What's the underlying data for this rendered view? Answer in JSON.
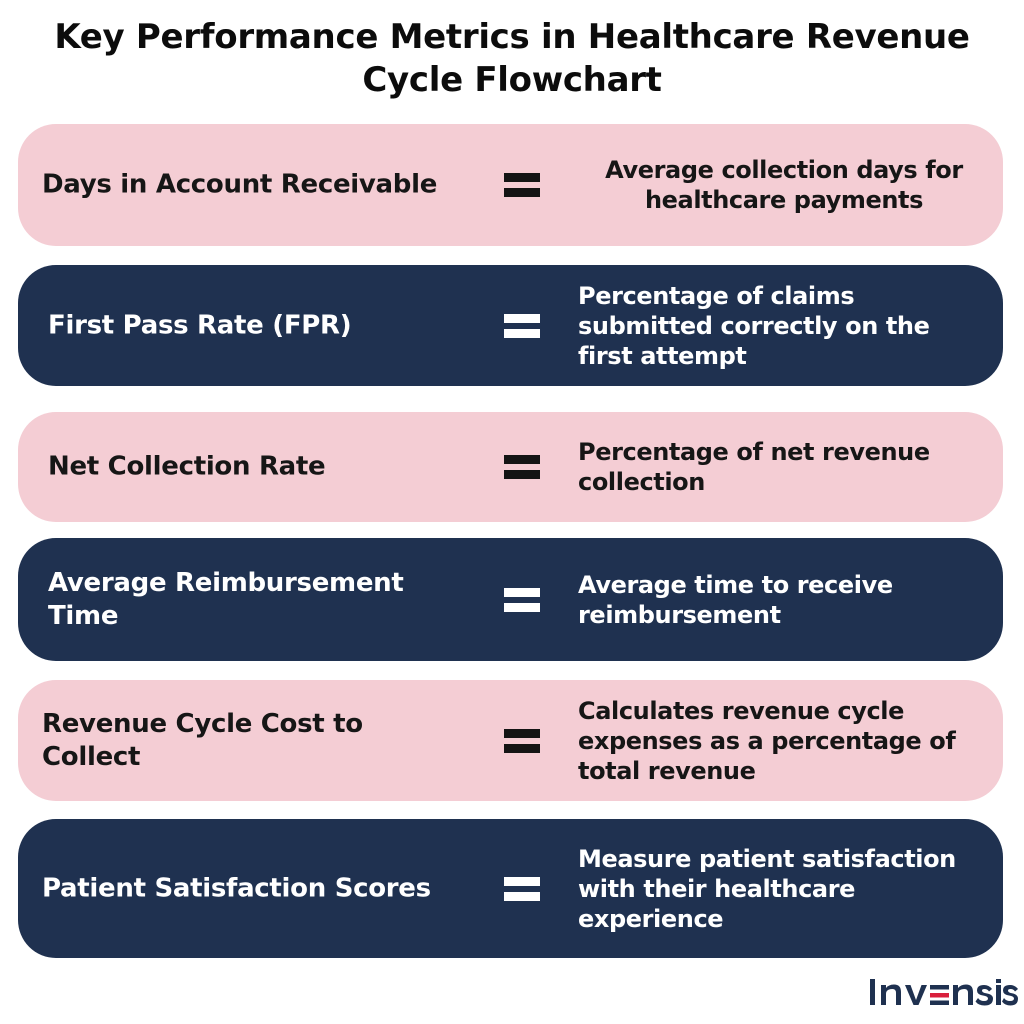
{
  "title": "Key Performance Metrics in Healthcare Revenue Cycle Flowchart",
  "colors": {
    "pink_row": "#f4cdd4",
    "navy_row": "#1f3150",
    "logo_text": "#1f3150",
    "logo_accent": "#d91f3c"
  },
  "connector_icon": "equals-icon",
  "metrics": [
    {
      "label": "Days in Account Receivable",
      "description": "Average collection days for healthcare payments"
    },
    {
      "label": "First Pass Rate (FPR)",
      "description": "Percentage of claims submitted correctly on the first attempt"
    },
    {
      "label": "Net Collection Rate",
      "description": "Percentage of net revenue collection"
    },
    {
      "label": "Average Reimbursement Time",
      "description": "Average time to receive reimbursement"
    },
    {
      "label": "Revenue Cycle Cost to Collect",
      "description": "Calculates revenue cycle expenses as a percentage of total revenue"
    },
    {
      "label": "Patient Satisfaction Scores",
      "description": "Measure patient satisfaction with their healthcare experience"
    }
  ],
  "logo": {
    "name": "invensis"
  }
}
